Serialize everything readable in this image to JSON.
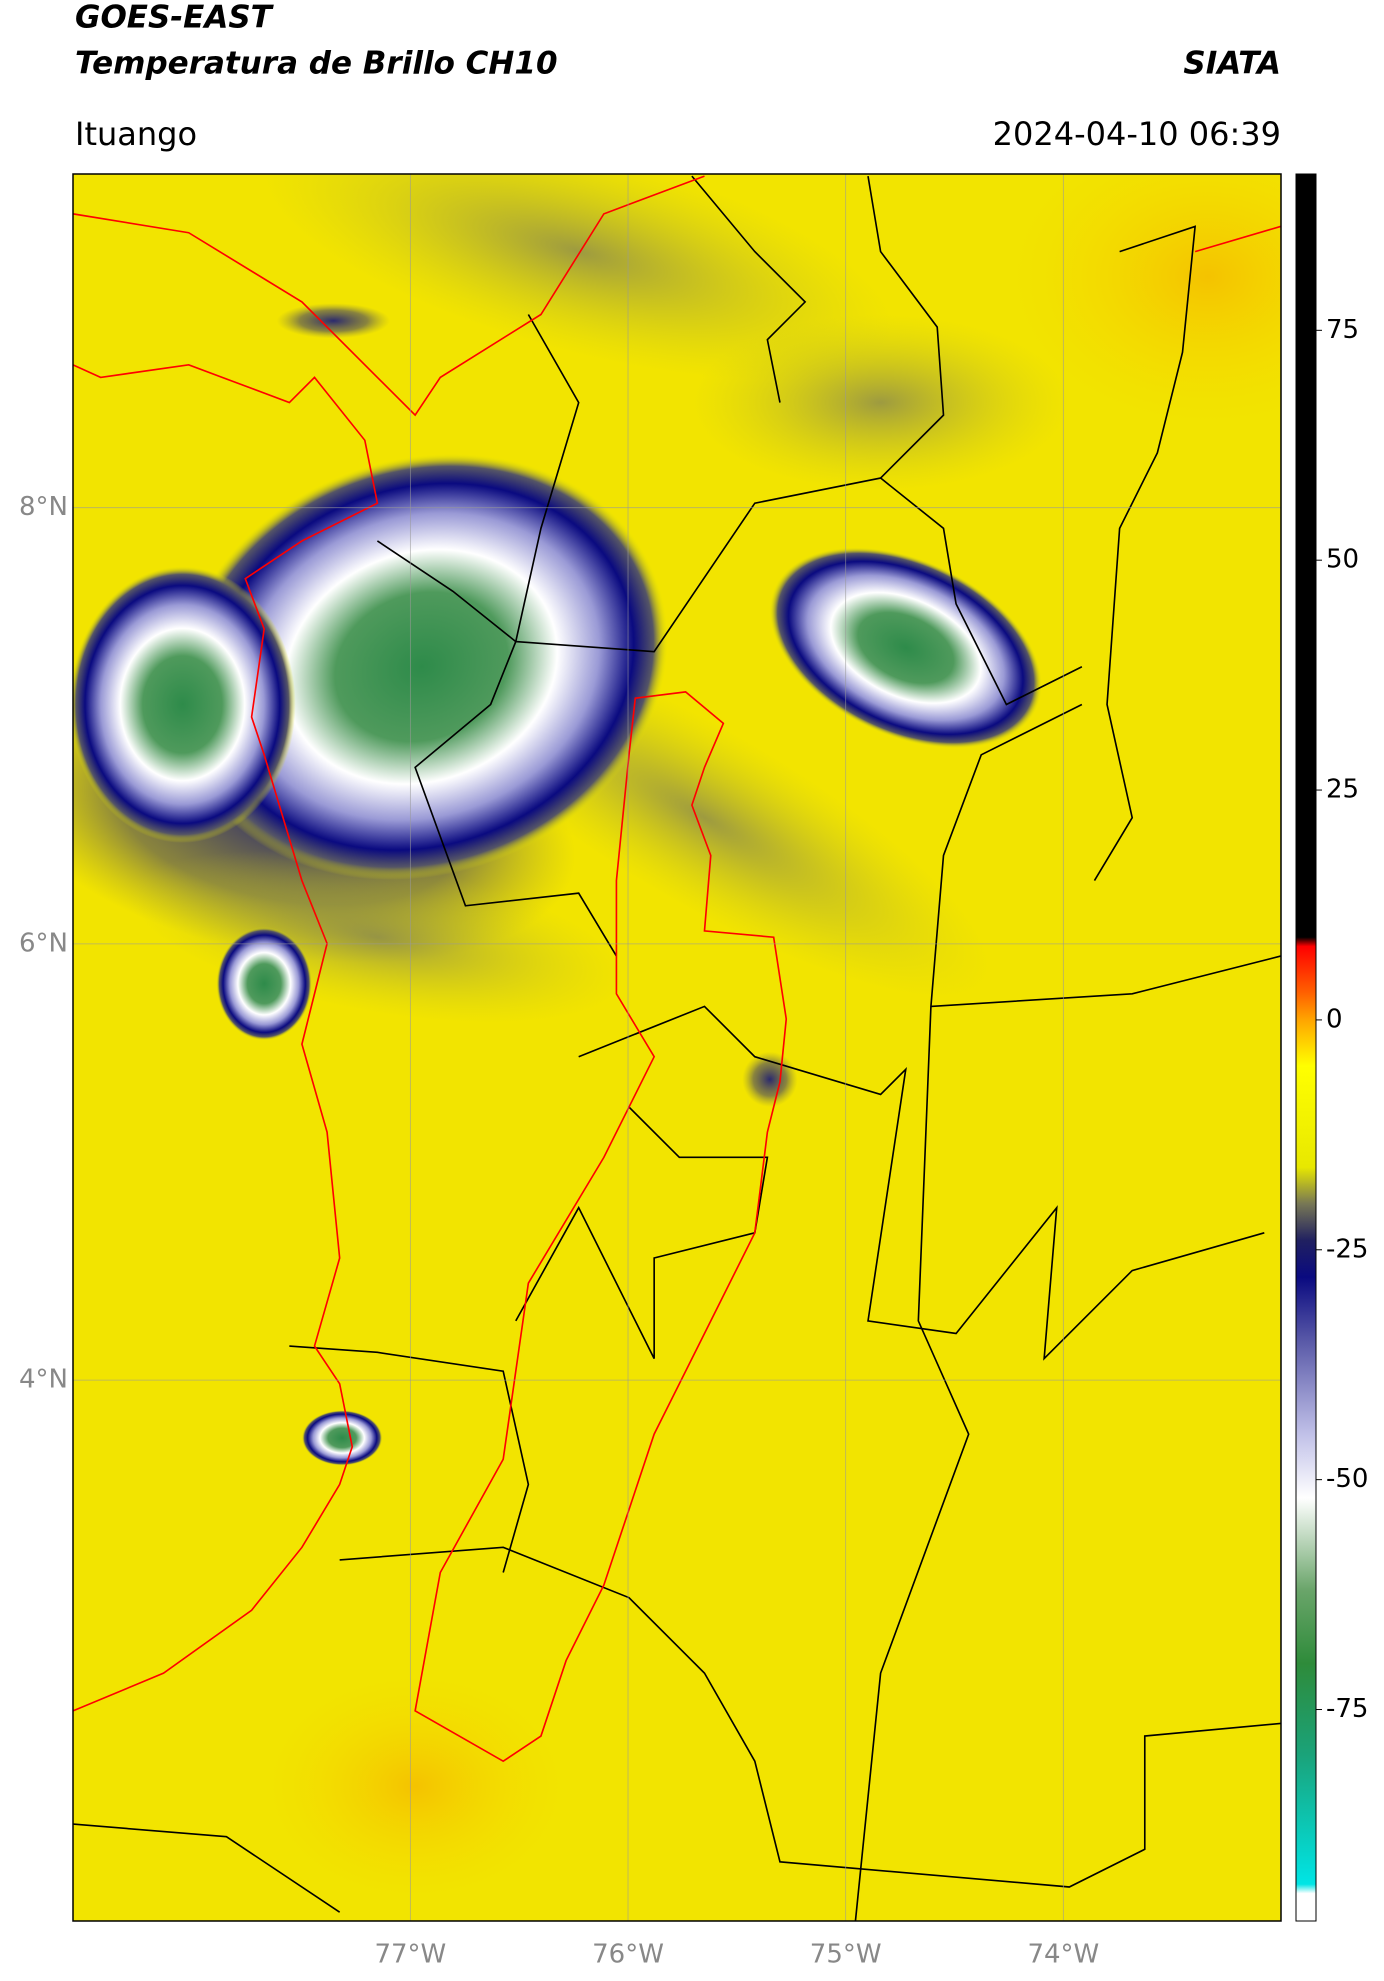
{
  "map": {
    "title": "GOES-EAST",
    "subtitle": "Temperatura de Brillo CH10",
    "source": "SIATA",
    "region": "Ituango",
    "timestamp": "2024-04-10 06:39",
    "xlim": [
      -78.55,
      -73.0
    ],
    "ylim": [
      1.52,
      9.53
    ],
    "xticks": [
      {
        "value": -77,
        "label": "77°W"
      },
      {
        "value": -76,
        "label": "76°W"
      },
      {
        "value": -75,
        "label": "75°W"
      },
      {
        "value": -74,
        "label": "74°W"
      }
    ],
    "yticks": [
      {
        "value": 4,
        "label": "4°N"
      },
      {
        "value": 6,
        "label": "6°N"
      },
      {
        "value": 8,
        "label": "8°N"
      }
    ],
    "grid": true,
    "colorbar": {
      "lim": [
        -98,
        92
      ],
      "ticks": [
        -75,
        -50,
        -25,
        0,
        25,
        50,
        75
      ],
      "stops": [
        {
          "value": -98,
          "color": "#ffffff"
        },
        {
          "value": -95,
          "color": "#ffffff"
        },
        {
          "value": -94,
          "color": "#00e5e5"
        },
        {
          "value": -80,
          "color": "#1aa37a"
        },
        {
          "value": -70,
          "color": "#2e8b3a"
        },
        {
          "value": -62,
          "color": "#6aa56a"
        },
        {
          "value": -52,
          "color": "#ffffff"
        },
        {
          "value": -45,
          "color": "#c0c0e8"
        },
        {
          "value": -35,
          "color": "#5a5aa8"
        },
        {
          "value": -28,
          "color": "#0a0a80"
        },
        {
          "value": -24,
          "color": "#202060"
        },
        {
          "value": -20,
          "color": "#777755"
        },
        {
          "value": -16,
          "color": "#e8e800"
        },
        {
          "value": -5,
          "color": "#ffff00"
        },
        {
          "value": 0,
          "color": "#ffa500"
        },
        {
          "value": 3,
          "color": "#ff6000"
        },
        {
          "value": 8,
          "color": "#ff0000"
        },
        {
          "value": 9,
          "color": "#000000"
        },
        {
          "value": 92,
          "color": "#000000"
        }
      ]
    }
  }
}
